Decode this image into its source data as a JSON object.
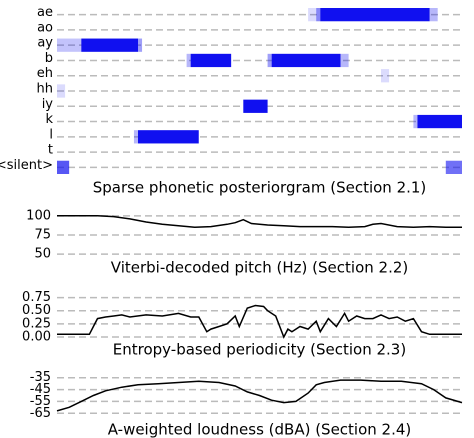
{
  "chart_data": [
    {
      "type": "heatmap",
      "title": "Sparse phonetic posteriorgram (Section 2.1)",
      "rows": [
        "ae",
        "ao",
        "ay",
        "b",
        "eh",
        "hh",
        "iy",
        "k",
        "l",
        "t",
        "<silent>"
      ],
      "xlim": [
        0,
        100
      ],
      "color": "#1010f0",
      "grid": true,
      "segments": [
        [
          [
            62,
            64,
            0.15
          ],
          [
            64,
            65,
            0.5
          ],
          [
            65,
            92,
            1
          ],
          [
            92,
            94,
            0.3
          ]
        ],
        [],
        [
          [
            0,
            6,
            0.25
          ],
          [
            6,
            20,
            1
          ],
          [
            20,
            21,
            0.4
          ]
        ],
        [
          [
            32,
            33,
            0.3
          ],
          [
            33,
            43,
            1
          ],
          [
            52,
            53,
            0.4
          ],
          [
            53,
            70,
            1
          ],
          [
            70,
            72,
            0.3
          ]
        ],
        [
          [
            80,
            82,
            0.15
          ]
        ],
        [
          [
            0,
            2,
            0.15
          ]
        ],
        [
          [
            46,
            52,
            1
          ]
        ],
        [
          [
            88,
            89,
            0.3
          ],
          [
            89,
            100,
            1
          ]
        ],
        [
          [
            19,
            20,
            0.3
          ],
          [
            20,
            35,
            1
          ]
        ],
        [],
        [
          [
            0,
            3,
            0.7
          ],
          [
            96,
            100,
            0.6
          ]
        ]
      ]
    },
    {
      "type": "line",
      "title": "Viterbi-decoded pitch (Hz) (Section 2.2)",
      "color": "#000000",
      "grid": true,
      "xlim": [
        0,
        100
      ],
      "ylim": [
        45,
        105
      ],
      "yticks": [
        100,
        75,
        50
      ],
      "x": [
        0,
        4,
        8,
        10,
        14,
        18,
        22,
        26,
        30,
        34,
        38,
        42,
        44,
        46,
        48,
        52,
        56,
        60,
        64,
        68,
        72,
        76,
        78,
        80,
        84,
        88,
        92,
        96,
        100
      ],
      "values": [
        100,
        100,
        100,
        100,
        99,
        96,
        92,
        89,
        87,
        85,
        86,
        89,
        91,
        95,
        90,
        88,
        87,
        86,
        86,
        86,
        85,
        86,
        89,
        90,
        86,
        85,
        86,
        85,
        85
      ]
    },
    {
      "type": "line",
      "title": "Entropy-based periodicity (Section 2.3)",
      "color": "#000000",
      "grid": true,
      "xlim": [
        0,
        100
      ],
      "ylim": [
        -0.02,
        0.8
      ],
      "yticks": [
        {
          "value": 0.75,
          "label": "0.75"
        },
        {
          "value": 0.5,
          "label": "0.50"
        },
        {
          "value": 0.25,
          "label": "0.25"
        },
        {
          "value": 0,
          "label": "0.00"
        }
      ],
      "x": [
        0,
        8,
        9,
        10,
        12,
        14,
        16,
        18,
        22,
        26,
        30,
        33,
        35,
        37,
        38,
        40,
        42,
        44,
        45,
        47,
        49,
        51,
        52,
        54,
        56,
        57,
        58,
        60,
        62,
        64,
        65,
        67,
        69,
        71,
        72,
        74,
        76,
        78,
        80,
        82,
        84,
        86,
        88,
        90,
        92,
        94,
        100
      ],
      "values": [
        0.05,
        0.05,
        0.2,
        0.35,
        0.38,
        0.4,
        0.42,
        0.38,
        0.42,
        0.4,
        0.45,
        0.38,
        0.38,
        0.1,
        0.15,
        0.2,
        0.25,
        0.4,
        0.2,
        0.55,
        0.6,
        0.58,
        0.5,
        0.4,
        0.0,
        0.15,
        0.1,
        0.2,
        0.15,
        0.3,
        0.1,
        0.35,
        0.2,
        0.45,
        0.3,
        0.4,
        0.35,
        0.35,
        0.42,
        0.35,
        0.38,
        0.3,
        0.35,
        0.1,
        0.05,
        0.05,
        0.05
      ]
    },
    {
      "type": "line",
      "title": "A-weighted loudness (dBA) (Section 2.4)",
      "color": "#000000",
      "grid": true,
      "xlim": [
        0,
        100
      ],
      "ylim": [
        -69,
        -31
      ],
      "yticks": [
        -35,
        -45,
        -55,
        -65
      ],
      "x": [
        0,
        3,
        6,
        9,
        12,
        16,
        20,
        25,
        30,
        35,
        40,
        44,
        47,
        50,
        53,
        56,
        59,
        62,
        64,
        66,
        70,
        75,
        80,
        85,
        90,
        93,
        96,
        100
      ],
      "values": [
        -63,
        -60,
        -55,
        -50,
        -46,
        -43,
        -41,
        -40,
        -39,
        -38,
        -39,
        -42,
        -47,
        -50,
        -54,
        -56,
        -55,
        -48,
        -41,
        -39,
        -37,
        -37,
        -38,
        -38,
        -40,
        -45,
        -52,
        -56
      ]
    }
  ]
}
